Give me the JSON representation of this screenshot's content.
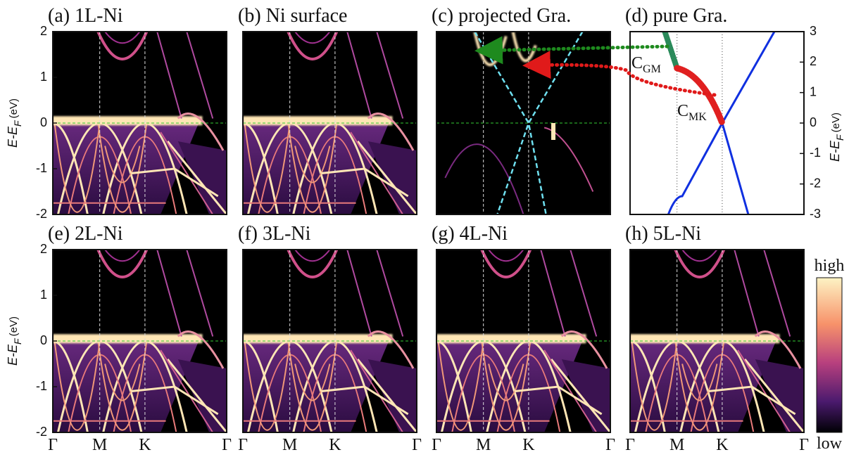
{
  "figure": {
    "panels": [
      {
        "title": "(a) 1L-Ni"
      },
      {
        "title": "(b) Ni surface"
      },
      {
        "title": "(c) projected Gra."
      },
      {
        "title": "(d) pure Gra."
      },
      {
        "title": "(e) 2L-Ni"
      },
      {
        "title": "(f) 3L-Ni"
      },
      {
        "title": "(g) 4L-Ni"
      },
      {
        "title": "(h) 5L-Ni"
      }
    ],
    "y_label": {
      "main": "E-E",
      "sub": "F",
      "unit": "(eV)"
    },
    "left_axis": {
      "ylim": [
        -2,
        2
      ],
      "yticks": [
        2,
        1,
        0,
        -1,
        -2
      ]
    },
    "right_axis": {
      "ylim": [
        -3,
        3
      ],
      "yticks": [
        3,
        2,
        1,
        0,
        -1,
        -2,
        -3
      ]
    },
    "kpoints": [
      "Γ",
      "M",
      "K",
      "Γ"
    ],
    "annotations": [
      {
        "main": "C",
        "sub": "GM"
      },
      {
        "main": "C",
        "sub": "MK"
      }
    ],
    "colorbar": {
      "high": "high",
      "low": "low"
    }
  }
}
